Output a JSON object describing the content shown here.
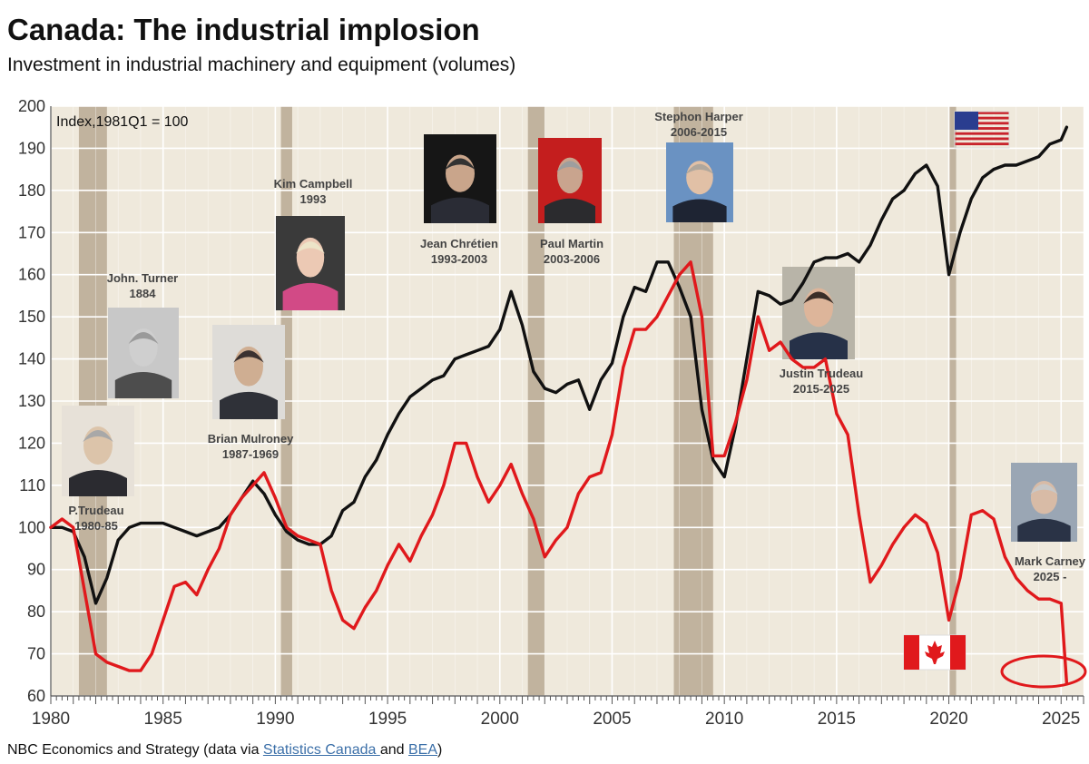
{
  "title": "Canada: The industrial implosion",
  "subtitle": "Investment in industrial machinery and equipment (volumes)",
  "footer": {
    "prefix": "NBC Economics and Strategy (data via ",
    "link1": "Statistics Canada ",
    "middle": "and ",
    "link2": "BEA",
    "suffix": ")"
  },
  "colors": {
    "canada": "#e0191c",
    "usa": "#111111",
    "recession": "#b9a993",
    "background": "#efe9dc",
    "grid": "#ffffff"
  },
  "chart_data": {
    "type": "line",
    "annotation": "Index,1981Q1 = 100",
    "xlim": [
      1980,
      2026
    ],
    "ylim": [
      60,
      200
    ],
    "yticks": [
      60,
      70,
      80,
      90,
      100,
      110,
      120,
      130,
      140,
      150,
      160,
      170,
      180,
      190,
      200
    ],
    "xticks": [
      1980,
      1985,
      1990,
      1995,
      2000,
      2005,
      2010,
      2015,
      2020,
      2025
    ],
    "grid": true,
    "recessions": [
      [
        1981.25,
        1982.5
      ],
      [
        1990.25,
        1990.75
      ],
      [
        2001.25,
        2002.0
      ],
      [
        2007.75,
        2009.5
      ],
      [
        2020.0,
        2020.25
      ]
    ],
    "series": [
      {
        "key": "usa",
        "x": [
          1980.0,
          1980.5,
          1981.0,
          1981.5,
          1982.0,
          1982.5,
          1983.0,
          1983.5,
          1984.0,
          1984.5,
          1985.0,
          1985.5,
          1986.0,
          1986.5,
          1987.0,
          1987.5,
          1988.0,
          1988.5,
          1989.0,
          1989.5,
          1990.0,
          1990.5,
          1991.0,
          1991.5,
          1992.0,
          1992.5,
          1993.0,
          1993.5,
          1994.0,
          1994.5,
          1995.0,
          1995.5,
          1996.0,
          1996.5,
          1997.0,
          1997.5,
          1998.0,
          1998.5,
          1999.0,
          1999.5,
          2000.0,
          2000.5,
          2001.0,
          2001.5,
          2002.0,
          2002.5,
          2003.0,
          2003.5,
          2004.0,
          2004.5,
          2005.0,
          2005.5,
          2006.0,
          2006.5,
          2007.0,
          2007.5,
          2008.0,
          2008.5,
          2009.0,
          2009.5,
          2010.0,
          2010.5,
          2011.0,
          2011.5,
          2012.0,
          2012.5,
          2013.0,
          2013.5,
          2014.0,
          2014.5,
          2015.0,
          2015.5,
          2016.0,
          2016.5,
          2017.0,
          2017.5,
          2018.0,
          2018.5,
          2019.0,
          2019.5,
          2020.0,
          2020.5,
          2021.0,
          2021.5,
          2022.0,
          2022.5,
          2023.0,
          2023.5,
          2024.0,
          2024.5,
          2025.0,
          2025.25
        ],
        "values": [
          100,
          100,
          99,
          93,
          82,
          88,
          97,
          100,
          101,
          101,
          101,
          100,
          99,
          98,
          99,
          100,
          103,
          107,
          111,
          108,
          103,
          99,
          97,
          96,
          96,
          98,
          104,
          106,
          112,
          116,
          122,
          127,
          131,
          133,
          135,
          136,
          140,
          141,
          142,
          143,
          147,
          156,
          148,
          137,
          133,
          132,
          134,
          135,
          128,
          135,
          139,
          150,
          157,
          156,
          163,
          163,
          157,
          150,
          128,
          116,
          112,
          124,
          140,
          156,
          155,
          153,
          154,
          158,
          163,
          164,
          164,
          165,
          163,
          167,
          173,
          178,
          180,
          184,
          186,
          181,
          160,
          170,
          178,
          183,
          185,
          186,
          186,
          187,
          188,
          191,
          192,
          195
        ]
      },
      {
        "key": "canada",
        "x": [
          1980.0,
          1980.5,
          1981.0,
          1981.5,
          1982.0,
          1982.5,
          1983.0,
          1983.5,
          1984.0,
          1984.5,
          1985.0,
          1985.5,
          1986.0,
          1986.5,
          1987.0,
          1987.5,
          1988.0,
          1988.5,
          1989.0,
          1989.5,
          1990.0,
          1990.5,
          1991.0,
          1991.5,
          1992.0,
          1992.5,
          1993.0,
          1993.5,
          1994.0,
          1994.5,
          1995.0,
          1995.5,
          1996.0,
          1996.5,
          1997.0,
          1997.5,
          1998.0,
          1998.5,
          1999.0,
          1999.5,
          2000.0,
          2000.5,
          2001.0,
          2001.5,
          2002.0,
          2002.5,
          2003.0,
          2003.5,
          2004.0,
          2004.5,
          2005.0,
          2005.5,
          2006.0,
          2006.5,
          2007.0,
          2007.5,
          2008.0,
          2008.5,
          2009.0,
          2009.5,
          2010.0,
          2010.5,
          2011.0,
          2011.5,
          2012.0,
          2012.5,
          2013.0,
          2013.5,
          2014.0,
          2014.5,
          2015.0,
          2015.5,
          2016.0,
          2016.5,
          2017.0,
          2017.5,
          2018.0,
          2018.5,
          2019.0,
          2019.5,
          2020.0,
          2020.5,
          2021.0,
          2021.5,
          2022.0,
          2022.5,
          2023.0,
          2023.5,
          2024.0,
          2024.5,
          2025.0,
          2025.25
        ],
        "values": [
          100,
          102,
          100,
          85,
          70,
          68,
          67,
          66,
          66,
          70,
          78,
          86,
          87,
          84,
          90,
          95,
          103,
          107,
          110,
          113,
          107,
          100,
          98,
          97,
          96,
          85,
          78,
          76,
          81,
          85,
          91,
          96,
          92,
          98,
          103,
          110,
          120,
          120,
          112,
          106,
          110,
          115,
          108,
          102,
          93,
          97,
          100,
          108,
          112,
          113,
          122,
          138,
          147,
          147,
          150,
          155,
          160,
          163,
          150,
          117,
          117,
          125,
          135,
          150,
          142,
          144,
          140,
          138,
          138,
          140,
          127,
          122,
          103,
          87,
          91,
          96,
          100,
          103,
          101,
          94,
          78,
          88,
          103,
          104,
          102,
          93,
          88,
          85,
          83,
          83,
          82,
          63
        ]
      }
    ]
  },
  "annotations": [
    {
      "name": "p-trudeau-label",
      "lines": [
        "P.Trudeau",
        "1980-85"
      ]
    },
    {
      "name": "turner-label",
      "lines": [
        "John. Turner",
        "1884"
      ]
    },
    {
      "name": "mulroney-label",
      "lines": [
        "Brian Mulroney",
        "1987-1969"
      ]
    },
    {
      "name": "campbell-label",
      "lines": [
        "Kim Campbell",
        "1993"
      ]
    },
    {
      "name": "chretien-label",
      "lines": [
        "Jean Chrétien",
        "1993-2003"
      ]
    },
    {
      "name": "martin-label",
      "lines": [
        "Paul Martin",
        "2003-2006"
      ]
    },
    {
      "name": "harper-label",
      "lines": [
        "Stephon Harper",
        "2006-2015"
      ]
    },
    {
      "name": "j-trudeau-label",
      "lines": [
        "Justin Trudeau",
        "2015-2025"
      ]
    },
    {
      "name": "carney-label",
      "lines": [
        "Mark Carney",
        "2025 -"
      ]
    }
  ]
}
